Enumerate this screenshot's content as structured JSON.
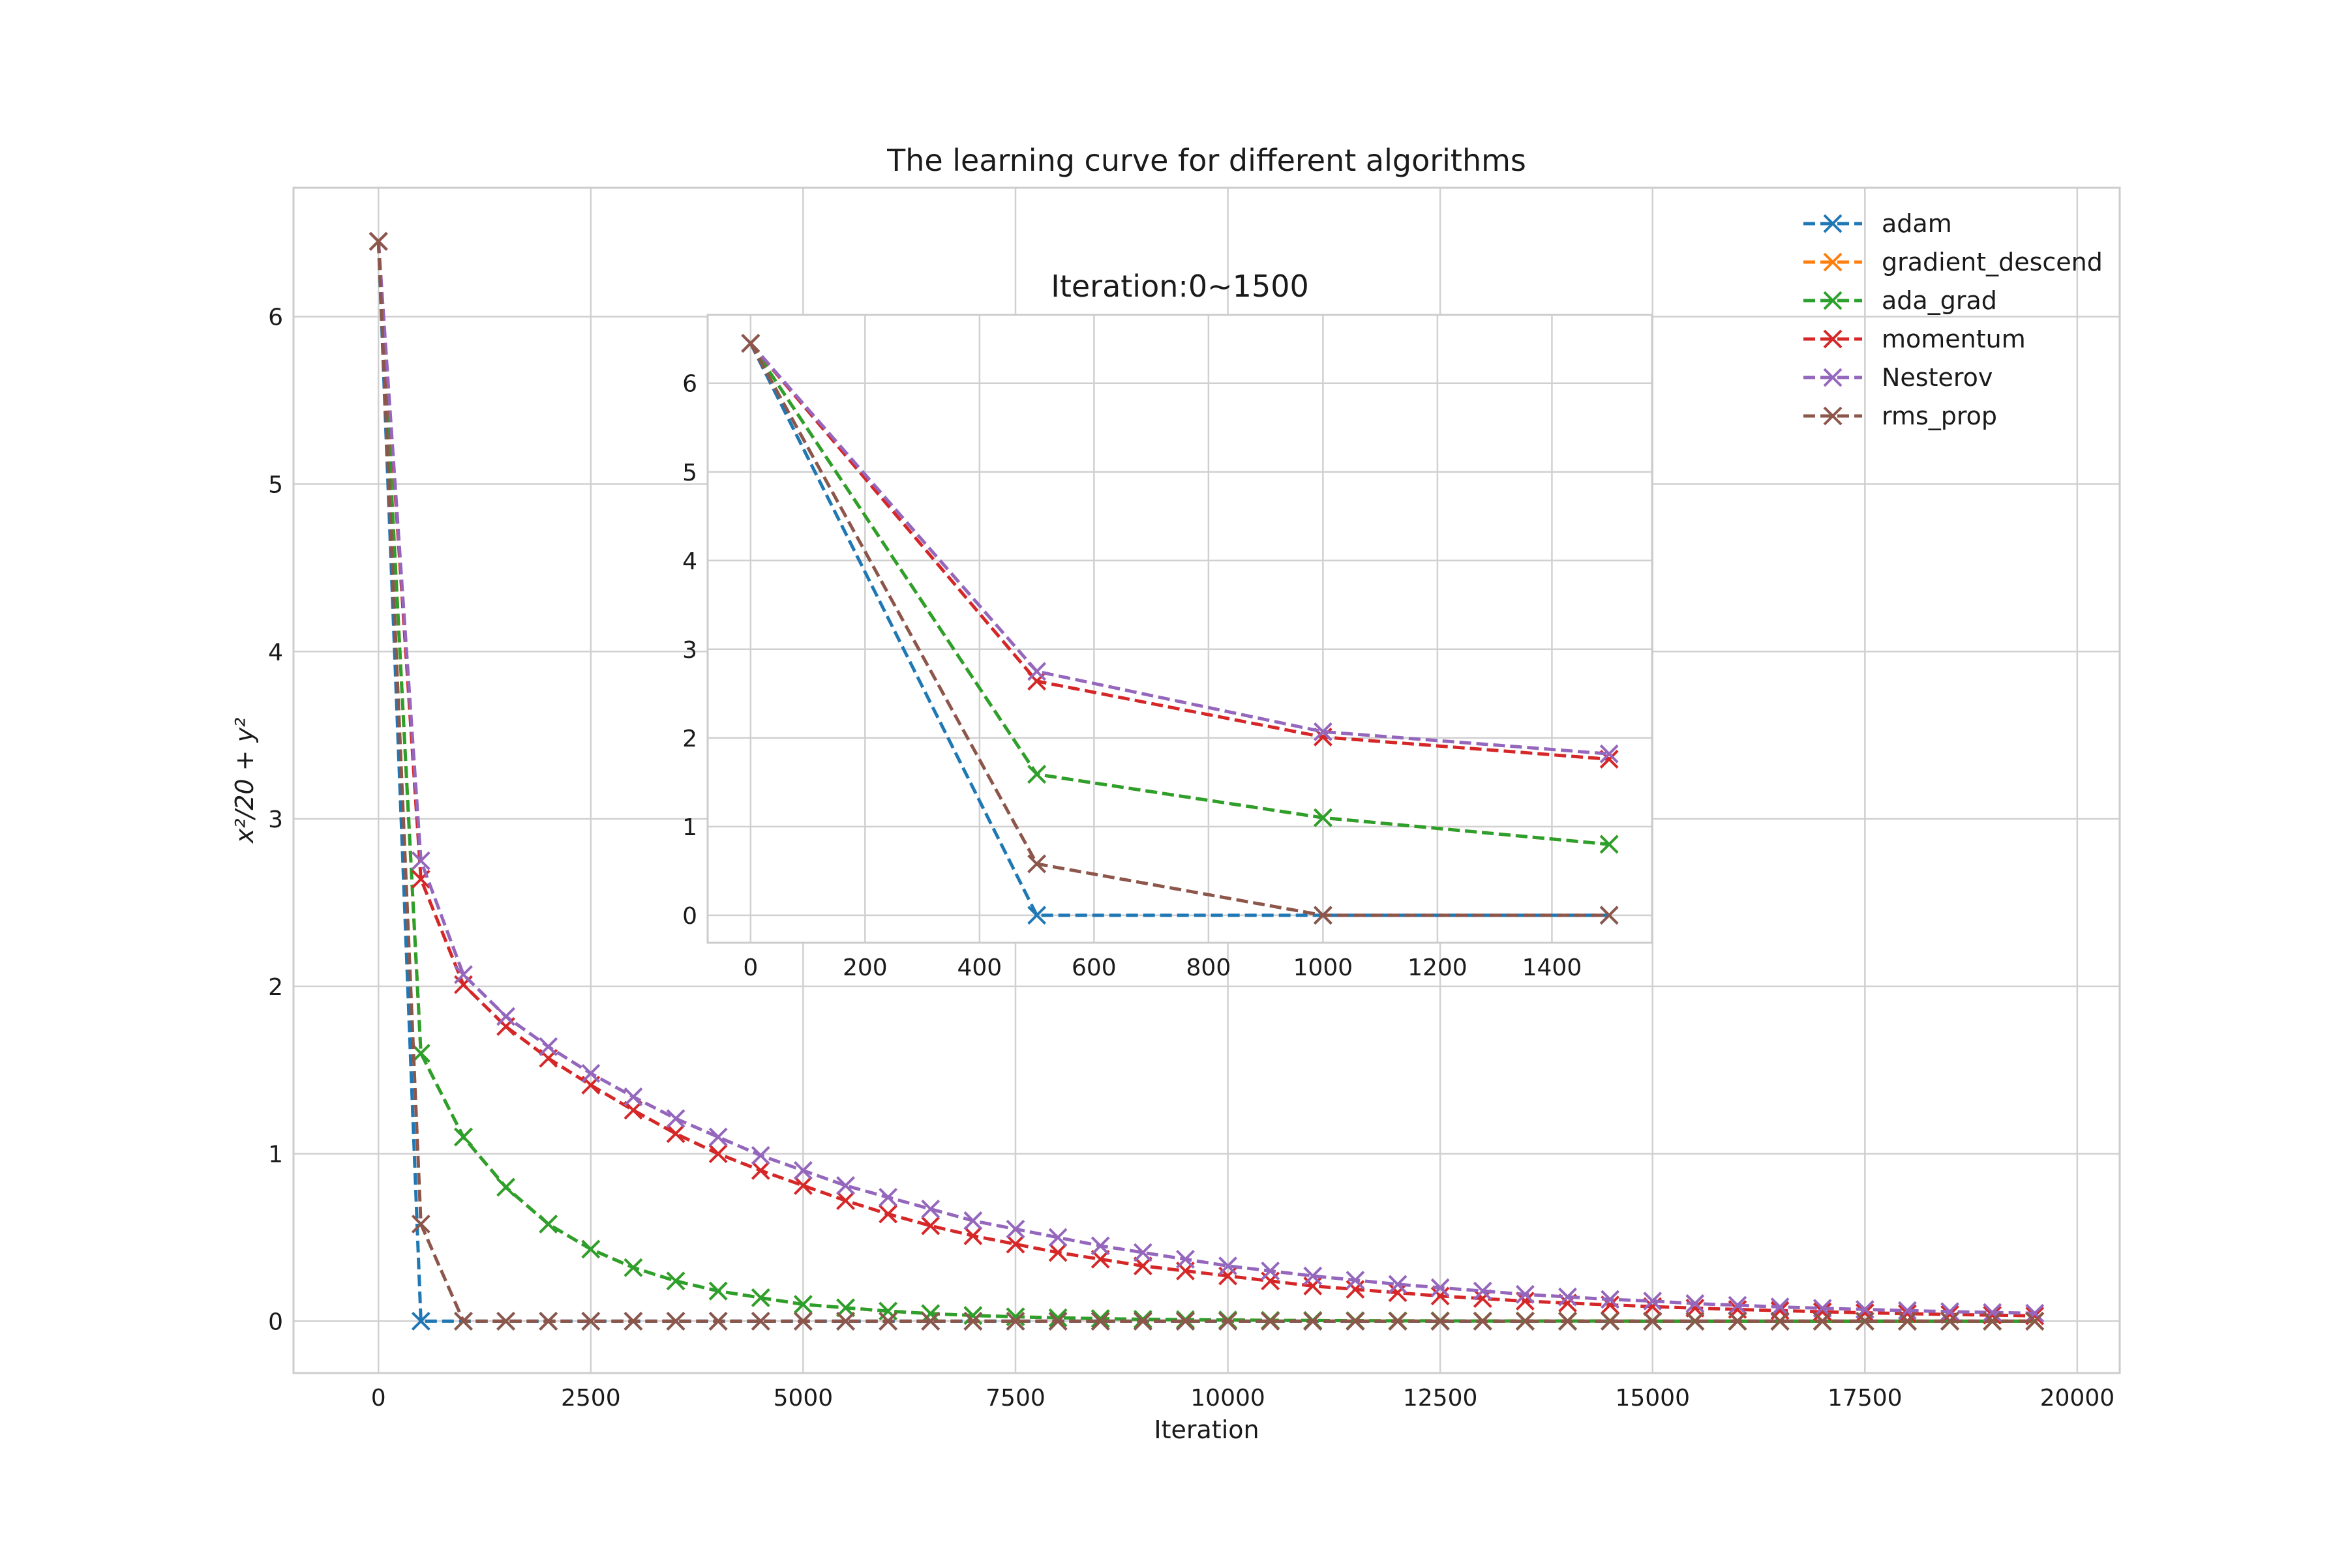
{
  "chart_data": [
    {
      "type": "line",
      "title": "The learning curve for different algorithms",
      "xlabel": "Iteration",
      "ylabel": "x²/20 + y²",
      "xlim": [
        -1000,
        20500
      ],
      "ylim": [
        -0.31,
        6.77
      ],
      "xticks": [
        0,
        2500,
        5000,
        7500,
        10000,
        12500,
        15000,
        17500,
        20000
      ],
      "yticks": [
        0,
        1,
        2,
        3,
        4,
        5,
        6
      ],
      "grid": true,
      "legend": "top-right",
      "marker": "x",
      "linestyle": "dashed",
      "x": {
        "start": 0,
        "step": 500,
        "count": 40
      },
      "series": [
        {
          "name": "adam",
          "color": "#1f77b4",
          "values": [
            6.45,
            0,
            0,
            0,
            0,
            0,
            0,
            0,
            0,
            0,
            0,
            0,
            0,
            0,
            0,
            0,
            0,
            0,
            0,
            0,
            0,
            0,
            0,
            0,
            0,
            0,
            0,
            0,
            0,
            0,
            0,
            0,
            0,
            0,
            0,
            0,
            0,
            0,
            0,
            0
          ]
        },
        {
          "name": "gradient_descend",
          "color": "#ff7f0e",
          "values": [
            6.45,
            1.6,
            1.1,
            0.8,
            0.58,
            0.43,
            0.32,
            0.24,
            0.18,
            0.14,
            0.1,
            0.08,
            0.06,
            0.045,
            0.034,
            0.026,
            0.02,
            0.015,
            0.011,
            0.009,
            0.007,
            0.005,
            0.004,
            0.003,
            0.002,
            0.002,
            0.001,
            0.001,
            0.001,
            0.001,
            0,
            0,
            0,
            0,
            0,
            0,
            0,
            0,
            0,
            0
          ]
        },
        {
          "name": "ada_grad",
          "color": "#2ca02c",
          "values": [
            6.45,
            1.6,
            1.1,
            0.8,
            0.58,
            0.43,
            0.32,
            0.24,
            0.18,
            0.14,
            0.1,
            0.08,
            0.06,
            0.045,
            0.034,
            0.026,
            0.02,
            0.015,
            0.011,
            0.009,
            0.007,
            0.005,
            0.004,
            0.003,
            0.002,
            0.002,
            0.001,
            0.001,
            0.001,
            0.001,
            0,
            0,
            0,
            0,
            0,
            0,
            0,
            0,
            0,
            0
          ]
        },
        {
          "name": "momentum",
          "color": "#d62728",
          "values": [
            6.45,
            2.64,
            2.01,
            1.76,
            1.57,
            1.41,
            1.26,
            1.12,
            1.0,
            0.9,
            0.81,
            0.72,
            0.64,
            0.57,
            0.51,
            0.46,
            0.41,
            0.37,
            0.33,
            0.3,
            0.27,
            0.24,
            0.21,
            0.19,
            0.17,
            0.15,
            0.135,
            0.12,
            0.108,
            0.097,
            0.087,
            0.078,
            0.07,
            0.063,
            0.056,
            0.05,
            0.045,
            0.04,
            0.036,
            0.032
          ]
        },
        {
          "name": "Nesterov",
          "color": "#9467bd",
          "values": [
            6.45,
            2.75,
            2.07,
            1.82,
            1.64,
            1.48,
            1.34,
            1.21,
            1.1,
            0.99,
            0.9,
            0.81,
            0.74,
            0.67,
            0.6,
            0.55,
            0.5,
            0.45,
            0.41,
            0.37,
            0.33,
            0.3,
            0.27,
            0.245,
            0.22,
            0.2,
            0.18,
            0.16,
            0.145,
            0.13,
            0.12,
            0.105,
            0.095,
            0.085,
            0.077,
            0.07,
            0.063,
            0.057,
            0.052,
            0.047
          ]
        },
        {
          "name": "rms_prop",
          "color": "#8c564b",
          "values": [
            6.45,
            0.58,
            0,
            0,
            0,
            0,
            0,
            0,
            0,
            0,
            0,
            0,
            0,
            0,
            0,
            0,
            0,
            0,
            0,
            0,
            0,
            0,
            0,
            0,
            0,
            0,
            0,
            0,
            0,
            0,
            0,
            0,
            0,
            0,
            0,
            0,
            0,
            0,
            0,
            0
          ]
        }
      ]
    },
    {
      "type": "line",
      "title": "Iteration:0~1500",
      "xlim": [
        -75,
        1575
      ],
      "ylim": [
        -0.31,
        6.77
      ],
      "xticks": [
        0,
        200,
        400,
        600,
        800,
        1000,
        1200,
        1400
      ],
      "yticks": [
        0,
        1,
        2,
        3,
        4,
        5,
        6
      ],
      "grid": true,
      "marker": "x",
      "linestyle": "dashed",
      "x": [
        0,
        500,
        1000,
        1500
      ],
      "series": [
        {
          "name": "adam",
          "color": "#1f77b4",
          "values": [
            6.45,
            0,
            0,
            0
          ]
        },
        {
          "name": "gradient_descend",
          "color": "#ff7f0e",
          "values": [
            6.45,
            1.59,
            1.1,
            0.8
          ]
        },
        {
          "name": "ada_grad",
          "color": "#2ca02c",
          "values": [
            6.45,
            1.59,
            1.1,
            0.8
          ]
        },
        {
          "name": "momentum",
          "color": "#d62728",
          "values": [
            6.45,
            2.64,
            2.01,
            1.76
          ]
        },
        {
          "name": "Nesterov",
          "color": "#9467bd",
          "values": [
            6.45,
            2.75,
            2.07,
            1.82
          ]
        },
        {
          "name": "rms_prop",
          "color": "#8c564b",
          "values": [
            6.45,
            0.58,
            0,
            0
          ]
        }
      ]
    }
  ]
}
